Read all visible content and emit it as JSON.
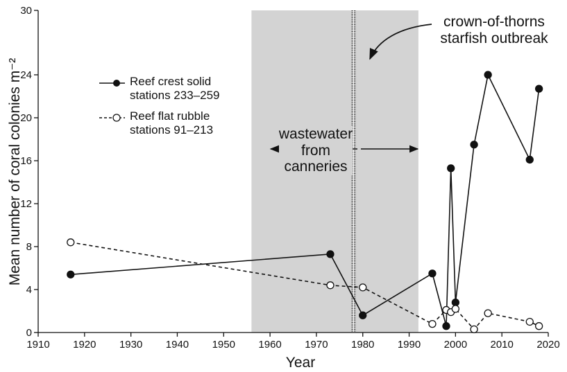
{
  "chart_data": {
    "type": "line",
    "x_label": "Year",
    "y_label": "Mean number of coral colonies m⁻²",
    "xlim": [
      1910,
      2020
    ],
    "xticks": [
      1910,
      1920,
      1930,
      1940,
      1950,
      1960,
      1970,
      1980,
      1990,
      2000,
      2010,
      2020
    ],
    "ylim": [
      0,
      30
    ],
    "yticks": [
      0,
      4,
      8,
      12,
      16,
      20,
      24,
      30
    ],
    "shaded_span": [
      1956,
      1992
    ],
    "event_line": 1978,
    "annotations": [
      "wastewater from canneries",
      "crown-of-thorns starfish outbreak"
    ],
    "series": [
      {
        "name": "Reef crest solid stations 233–259",
        "color": "#111111",
        "style": "solid",
        "marker": "filled",
        "x": [
          1917,
          1973,
          1980,
          1995,
          1998,
          1999,
          2000,
          2004,
          2007,
          2016,
          2018
        ],
        "values": [
          5.4,
          7.3,
          1.6,
          5.5,
          0.6,
          15.3,
          2.8,
          17.5,
          24,
          16.1,
          22.7
        ]
      },
      {
        "name": "Reef flat rubble stations 91–213",
        "color": "#111111",
        "style": "dashed",
        "marker": "open",
        "x": [
          1917,
          1973,
          1980,
          1995,
          1998,
          1999,
          2000,
          2004,
          2007,
          2016,
          2018
        ],
        "values": [
          8.4,
          4.4,
          4.2,
          0.8,
          2.1,
          1.9,
          2.2,
          0.3,
          1.8,
          1.0,
          0.6
        ]
      }
    ]
  }
}
